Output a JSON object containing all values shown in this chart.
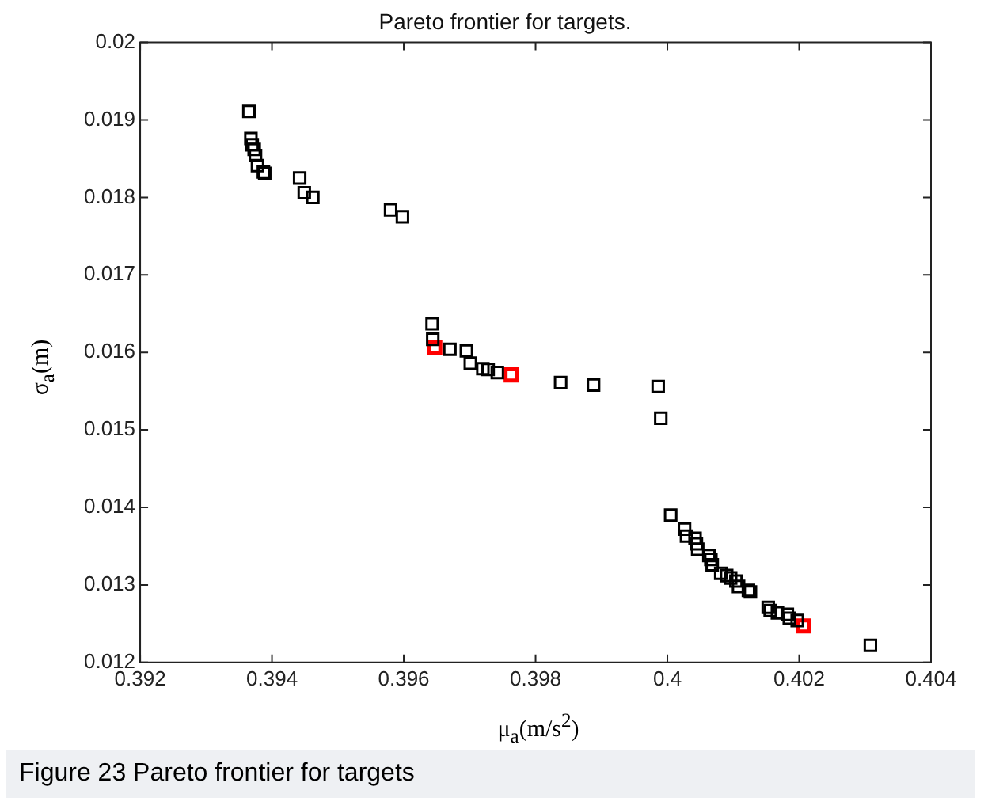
{
  "chart_data": {
    "type": "scatter",
    "title": "Pareto frontier for targets.",
    "xlabel": "μ$_{a}$(m/s$^{2}$)",
    "ylabel": "σ$_{a}$(m)",
    "annotations": [
      "Figure 23 Pareto frontier for targets"
    ],
    "marker": "square",
    "grid": false,
    "legend": false,
    "xlim": [
      0.392,
      0.404
    ],
    "xticks": [
      0.392,
      0.394,
      0.396,
      0.398,
      0.4,
      0.402,
      0.404
    ],
    "ylim": [
      0.012,
      0.02
    ],
    "yticks": [
      0.012,
      0.013,
      0.014,
      0.015,
      0.016,
      0.017,
      0.018,
      0.019,
      0.02
    ],
    "series": [
      {
        "color": "#000000",
        "x": [
          0.39365,
          0.39368,
          0.3937,
          0.39373,
          0.39375,
          0.39378,
          0.39387,
          0.39389,
          0.39442,
          0.39449,
          0.39462,
          0.3958,
          0.39598,
          0.39643,
          0.39644,
          0.3967,
          0.39695,
          0.39701,
          0.3972,
          0.39728,
          0.39742,
          0.39838,
          0.39888,
          0.39986,
          0.3999,
          0.40005,
          0.40026,
          0.40029,
          0.40042,
          0.40044,
          0.40046,
          0.40063,
          0.40066,
          0.40068,
          0.40081,
          0.4009,
          0.40096,
          0.40104,
          0.40108,
          0.40123,
          0.40126,
          0.40153,
          0.40156,
          0.40167,
          0.40182,
          0.40185,
          0.40197,
          0.40308
        ],
        "values": [
          0.01911,
          0.01876,
          0.01868,
          0.01862,
          0.01854,
          0.01841,
          0.01833,
          0.01831,
          0.01825,
          0.01806,
          0.018,
          0.01784,
          0.01775,
          0.01637,
          0.01617,
          0.01604,
          0.01602,
          0.01586,
          0.01579,
          0.01578,
          0.01574,
          0.01561,
          0.01558,
          0.01556,
          0.01515,
          0.0139,
          0.01372,
          0.01363,
          0.0136,
          0.01353,
          0.01346,
          0.01338,
          0.01333,
          0.01326,
          0.01315,
          0.01312,
          0.01309,
          0.01305,
          0.01298,
          0.01293,
          0.01291,
          0.01271,
          0.01267,
          0.01264,
          0.01262,
          0.01257,
          0.01254,
          0.01222
        ]
      },
      {
        "color": "#ff0000",
        "x": [
          0.39647,
          0.39763,
          0.40207
        ],
        "values": [
          0.01606,
          0.01571,
          0.01247
        ]
      }
    ]
  }
}
